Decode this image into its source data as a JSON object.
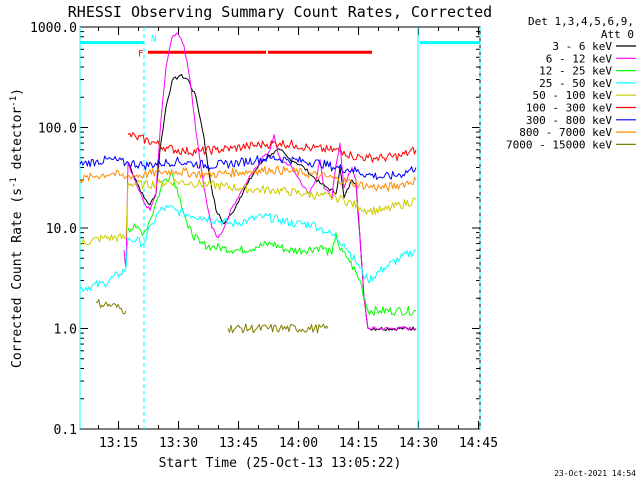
{
  "chart_data": {
    "type": "line",
    "title": "RHESSI Observing Summary Count Rates, Corrected",
    "xlabel": "Start Time (25-Oct-13 13:05:22)",
    "ylabel": "Corrected Count Rate (s",
    "ylabel_sup1": "-1",
    "ylabel_mid": " detector",
    "ylabel_sup2": "-1",
    "ylabel_end": ")",
    "y_scale": "log",
    "ylim": [
      0.1,
      1000
    ],
    "xlim_minutes": [
      0,
      100
    ],
    "ytick_labels": [
      "0.1",
      "1.0",
      "10.0",
      "100.0",
      "1000.0"
    ],
    "xticks": [
      {
        "label": "13:15",
        "t": 9.633
      },
      {
        "label": "13:30",
        "t": 24.633
      },
      {
        "label": "13:45",
        "t": 39.633
      },
      {
        "label": "14:00",
        "t": 54.633
      },
      {
        "label": "14:15",
        "t": 69.633
      },
      {
        "label": "14:30",
        "t": 84.633
      },
      {
        "label": "14:45",
        "t": 99.633
      }
    ],
    "legend": {
      "header_line1": "Det 1,3,4,5,6,9,",
      "header_line2": "Att 0",
      "placement": "outside-right"
    },
    "series": [
      {
        "name": "3 - 6 keV",
        "color": "#000000",
        "points": [
          [
            0,
            null
          ],
          [
            11.5,
            null
          ],
          [
            12,
            45
          ],
          [
            14,
            30
          ],
          [
            16,
            20
          ],
          [
            17.5,
            17
          ],
          [
            19,
            22
          ],
          [
            20,
            60
          ],
          [
            21.5,
            160
          ],
          [
            23,
            290
          ],
          [
            25,
            330
          ],
          [
            27,
            300
          ],
          [
            29,
            200
          ],
          [
            31,
            80
          ],
          [
            32,
            40
          ],
          [
            34,
            15
          ],
          [
            36,
            11
          ],
          [
            38,
            14
          ],
          [
            40,
            20
          ],
          [
            42,
            28
          ],
          [
            44,
            38
          ],
          [
            46,
            48
          ],
          [
            48,
            55
          ],
          [
            50,
            60
          ],
          [
            52,
            50
          ],
          [
            54,
            45
          ],
          [
            56,
            40
          ],
          [
            58,
            33
          ],
          [
            60,
            28
          ],
          [
            62,
            25
          ],
          [
            64,
            22
          ],
          [
            65,
            40
          ],
          [
            66,
            20
          ],
          [
            68,
            30
          ],
          [
            69,
            28
          ],
          [
            70,
            8
          ],
          [
            71,
            2
          ],
          [
            72,
            1
          ],
          [
            84,
            1
          ]
        ]
      },
      {
        "name": "6 - 12 keV",
        "color": "#ff00ff",
        "points": [
          [
            0,
            null
          ],
          [
            11,
            6
          ],
          [
            11.5,
            4
          ],
          [
            12,
            45
          ],
          [
            14,
            28
          ],
          [
            16,
            18
          ],
          [
            17.5,
            15
          ],
          [
            19,
            22
          ],
          [
            20,
            90
          ],
          [
            21.5,
            400
          ],
          [
            23,
            780
          ],
          [
            24.5,
            850
          ],
          [
            26,
            650
          ],
          [
            27.5,
            300
          ],
          [
            29,
            90
          ],
          [
            31,
            25
          ],
          [
            33,
            10
          ],
          [
            34.5,
            8
          ],
          [
            36,
            10
          ],
          [
            38,
            16
          ],
          [
            40,
            22
          ],
          [
            42,
            30
          ],
          [
            44,
            40
          ],
          [
            46,
            52
          ],
          [
            47.5,
            60
          ],
          [
            48.5,
            85
          ],
          [
            49.5,
            55
          ],
          [
            51,
            45
          ],
          [
            53,
            40
          ],
          [
            55,
            30
          ],
          [
            57,
            22
          ],
          [
            59,
            30
          ],
          [
            60,
            48
          ],
          [
            61,
            25
          ],
          [
            63,
            20
          ],
          [
            64,
            42
          ],
          [
            65,
            70
          ],
          [
            66,
            25
          ],
          [
            68,
            40
          ],
          [
            69,
            30
          ],
          [
            70,
            8
          ],
          [
            71,
            2
          ],
          [
            72,
            1
          ],
          [
            84,
            1
          ]
        ]
      },
      {
        "name": "12 - 25 keV",
        "color": "#00ff00",
        "points": [
          [
            0,
            null
          ],
          [
            12,
            10
          ],
          [
            14,
            10
          ],
          [
            16,
            9
          ],
          [
            17.5,
            12
          ],
          [
            19,
            18
          ],
          [
            21,
            30
          ],
          [
            23,
            35
          ],
          [
            25,
            20
          ],
          [
            27,
            10
          ],
          [
            30,
            7
          ],
          [
            33,
            6.5
          ],
          [
            36,
            6.3
          ],
          [
            40,
            6
          ],
          [
            44,
            6.5
          ],
          [
            48,
            7
          ],
          [
            52,
            6
          ],
          [
            56,
            6
          ],
          [
            60,
            6.5
          ],
          [
            63,
            5.5
          ],
          [
            64,
            9
          ],
          [
            65,
            6
          ],
          [
            67,
            5
          ],
          [
            70,
            3
          ],
          [
            72,
            1.5
          ],
          [
            75,
            1.5
          ],
          [
            79,
            1.5
          ],
          [
            84,
            1.5
          ]
        ]
      },
      {
        "name": "25 - 50 keV",
        "color": "#00ffff",
        "points": [
          [
            0,
            2.5
          ],
          [
            6,
            2.8
          ],
          [
            10,
            3.5
          ],
          [
            11.5,
            4
          ],
          [
            12,
            8
          ],
          [
            14,
            7.5
          ],
          [
            16,
            7
          ],
          [
            18,
            11
          ],
          [
            20,
            15
          ],
          [
            22,
            16
          ],
          [
            24,
            15
          ],
          [
            26,
            14
          ],
          [
            30,
            13
          ],
          [
            34,
            12
          ],
          [
            38,
            11
          ],
          [
            42,
            12
          ],
          [
            46,
            13
          ],
          [
            50,
            12
          ],
          [
            54,
            11
          ],
          [
            58,
            11
          ],
          [
            60,
            10
          ],
          [
            62,
            9
          ],
          [
            64,
            8
          ],
          [
            66,
            7
          ],
          [
            70,
            4
          ],
          [
            72,
            3
          ],
          [
            76,
            4
          ],
          [
            80,
            5
          ],
          [
            84,
            6
          ]
        ]
      },
      {
        "name": "50 - 100 keV",
        "color": "#cccc00",
        "points": [
          [
            0,
            7
          ],
          [
            6,
            8
          ],
          [
            11.5,
            8
          ],
          [
            12,
            28
          ],
          [
            16,
            27
          ],
          [
            20,
            28
          ],
          [
            24,
            29
          ],
          [
            28,
            28
          ],
          [
            32,
            27
          ],
          [
            36,
            26
          ],
          [
            40,
            25
          ],
          [
            44,
            24
          ],
          [
            48,
            24
          ],
          [
            52,
            23
          ],
          [
            56,
            22
          ],
          [
            60,
            21
          ],
          [
            64,
            20
          ],
          [
            66,
            19
          ],
          [
            70,
            16
          ],
          [
            72,
            15
          ],
          [
            76,
            15
          ],
          [
            80,
            17
          ],
          [
            84,
            19
          ]
        ]
      },
      {
        "name": "100 - 300 keV",
        "color": "#ff0000",
        "points": [
          [
            11.5,
            null
          ],
          [
            12,
            85
          ],
          [
            14,
            80
          ],
          [
            18,
            72
          ],
          [
            22,
            62
          ],
          [
            26,
            58
          ],
          [
            30,
            58
          ],
          [
            34,
            60
          ],
          [
            38,
            62
          ],
          [
            42,
            65
          ],
          [
            46,
            68
          ],
          [
            50,
            70
          ],
          [
            54,
            67
          ],
          [
            58,
            62
          ],
          [
            62,
            60
          ],
          [
            66,
            58
          ],
          [
            68,
            52
          ],
          [
            72,
            50
          ],
          [
            76,
            50
          ],
          [
            80,
            52
          ],
          [
            84,
            60
          ]
        ]
      },
      {
        "name": "300 - 800 keV",
        "color": "#0000ff",
        "points": [
          [
            0,
            43
          ],
          [
            4,
            46
          ],
          [
            8,
            48
          ],
          [
            11.5,
            44
          ],
          [
            12,
            45
          ],
          [
            16,
            42
          ],
          [
            20,
            44
          ],
          [
            24,
            46
          ],
          [
            28,
            44
          ],
          [
            32,
            42
          ],
          [
            36,
            43
          ],
          [
            40,
            45
          ],
          [
            44,
            48
          ],
          [
            48,
            50
          ],
          [
            52,
            48
          ],
          [
            56,
            46
          ],
          [
            60,
            44
          ],
          [
            64,
            40
          ],
          [
            68,
            38
          ],
          [
            72,
            34
          ],
          [
            76,
            32
          ],
          [
            80,
            34
          ],
          [
            84,
            40
          ]
        ]
      },
      {
        "name": "800 - 7000 keV",
        "color": "#ff8c00",
        "points": [
          [
            0,
            30
          ],
          [
            4,
            33
          ],
          [
            8,
            35
          ],
          [
            11.5,
            32
          ],
          [
            12,
            33
          ],
          [
            16,
            34
          ],
          [
            20,
            36
          ],
          [
            24,
            37
          ],
          [
            28,
            35
          ],
          [
            32,
            34
          ],
          [
            36,
            35
          ],
          [
            40,
            36
          ],
          [
            44,
            37
          ],
          [
            48,
            38
          ],
          [
            52,
            37
          ],
          [
            56,
            35
          ],
          [
            60,
            33
          ],
          [
            64,
            31
          ],
          [
            68,
            28
          ],
          [
            72,
            26
          ],
          [
            76,
            25
          ],
          [
            80,
            27
          ],
          [
            84,
            30
          ]
        ]
      },
      {
        "name": "7000 - 15000 keV",
        "color": "#808000",
        "points": [
          [
            0,
            null
          ],
          [
            3.5,
            null
          ],
          [
            4,
            1.8
          ],
          [
            8,
            1.7
          ],
          [
            11.5,
            1.5
          ],
          [
            12,
            null
          ],
          [
            36.5,
            null
          ],
          [
            37,
            1
          ],
          [
            50,
            1
          ],
          [
            62,
            1
          ],
          [
            63,
            null
          ]
        ]
      }
    ],
    "legend_marks": [
      "N",
      "F"
    ],
    "bars": [
      {
        "label": "N",
        "color": "#00ffff",
        "t_start": 0,
        "t_end": 16,
        "level": 700
      },
      {
        "label": "N",
        "color": "#00ffff",
        "t_start": 85,
        "t_end": 100,
        "level": 700
      },
      {
        "label": "F",
        "color": "#ff0000",
        "t_start": 17,
        "t_end": 46.5,
        "level": 560
      },
      {
        "label": "F",
        "color": "#ff0000",
        "t_start": 47,
        "t_end": 73,
        "level": 560
      }
    ],
    "vlines": [
      {
        "t": 0,
        "color": "#00ffff",
        "style": "solid"
      },
      {
        "t": 16,
        "color": "#00ffff",
        "style": "dashed"
      },
      {
        "t": 84.5,
        "color": "#00ffff",
        "style": "solid"
      },
      {
        "t": 100,
        "color": "#00ffff",
        "style": "dashed"
      }
    ],
    "timestamp": "23-Oct-2021 14:54"
  }
}
